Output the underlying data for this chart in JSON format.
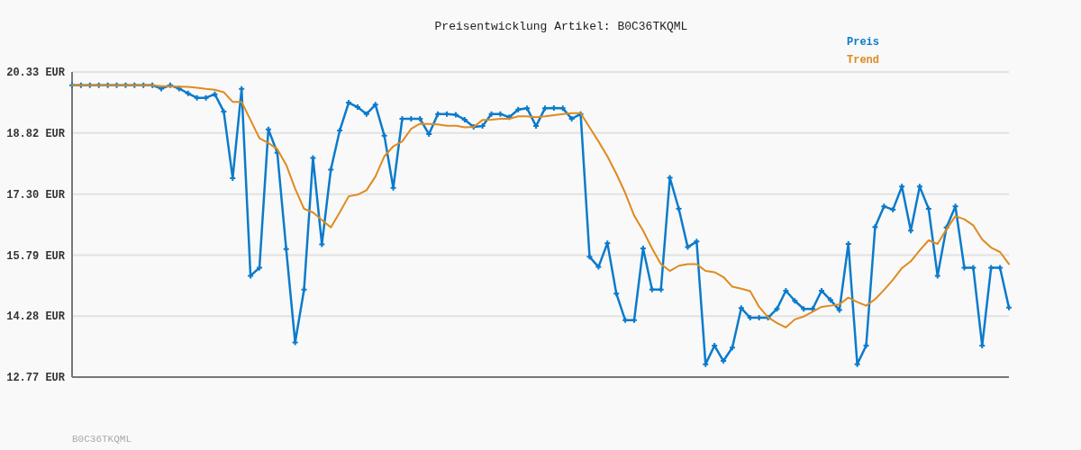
{
  "chart_data": {
    "type": "line",
    "title": "Preisentwicklung Artikel: B0C36TKQML",
    "annotations": [
      "B0C36TKQML"
    ],
    "categories": [
      null,
      null,
      null,
      null,
      null,
      null,
      null,
      null,
      null,
      null,
      null,
      null,
      null,
      null,
      null,
      null,
      null,
      null,
      null,
      null,
      null,
      null,
      null,
      null,
      null,
      null,
      null,
      null,
      null,
      null,
      null,
      null,
      null,
      null,
      null,
      null,
      null,
      null,
      null,
      null,
      null,
      null,
      null,
      null,
      null,
      null,
      null,
      null,
      null,
      null,
      null,
      null,
      null,
      null,
      null,
      null,
      null,
      null,
      null,
      null,
      null,
      null,
      null,
      null,
      null,
      null,
      null,
      null,
      null,
      null,
      null,
      null,
      null,
      null,
      null,
      null,
      null,
      null,
      null,
      null,
      null,
      null,
      null,
      null,
      null,
      null,
      null,
      null,
      null,
      null,
      null,
      null,
      null,
      null,
      null,
      null,
      null,
      null,
      null,
      null,
      null,
      null,
      null,
      null,
      null,
      null
    ],
    "series": [
      {
        "name": "Preis",
        "color": "#0b7bcb",
        "marker": "cross",
        "values": [
          20.0,
          20.0,
          20.0,
          20.0,
          20.0,
          20.0,
          20.0,
          20.0,
          20.0,
          20.0,
          19.92,
          20.0,
          19.92,
          19.8,
          19.69,
          19.69,
          19.78,
          19.35,
          17.7,
          19.91,
          15.28,
          15.48,
          18.91,
          18.33,
          15.94,
          13.63,
          14.94,
          18.2,
          16.06,
          17.91,
          18.88,
          19.57,
          19.46,
          19.29,
          19.52,
          18.75,
          17.46,
          19.17,
          19.17,
          19.17,
          18.79,
          19.29,
          19.29,
          19.27,
          19.15,
          18.97,
          18.99,
          19.29,
          19.29,
          19.21,
          19.4,
          19.43,
          18.99,
          19.43,
          19.44,
          19.43,
          19.17,
          19.29,
          15.75,
          15.5,
          16.09,
          14.84,
          14.18,
          14.18,
          15.96,
          14.94,
          14.94,
          17.71,
          16.94,
          15.99,
          16.13,
          13.09,
          13.55,
          13.17,
          13.5,
          14.48,
          14.24,
          14.24,
          14.24,
          14.46,
          14.91,
          14.66,
          14.46,
          14.46,
          14.91,
          14.68,
          14.43,
          16.07,
          13.09,
          13.55,
          16.49,
          17.0,
          16.92,
          17.49,
          16.4,
          17.49,
          16.94,
          15.28,
          16.48,
          17.0,
          15.48,
          15.48,
          13.55,
          15.48,
          15.48,
          14.49
        ]
      },
      {
        "name": "Trend",
        "color": "#e08a1e",
        "marker": "none",
        "values": [
          20.0,
          20.0,
          20.0,
          20.0,
          20.0,
          20.0,
          20.0,
          20.0,
          20.0,
          20.0,
          19.98,
          19.98,
          19.97,
          19.96,
          19.94,
          19.91,
          19.89,
          19.83,
          19.59,
          19.59,
          19.14,
          18.69,
          18.57,
          18.42,
          18.03,
          17.44,
          16.94,
          16.85,
          16.66,
          16.48,
          16.85,
          17.25,
          17.29,
          17.4,
          17.74,
          18.24,
          18.49,
          18.61,
          18.92,
          19.05,
          19.04,
          19.03,
          19.0,
          19.0,
          18.96,
          18.97,
          19.14,
          19.15,
          19.17,
          19.17,
          19.23,
          19.23,
          19.21,
          19.23,
          19.26,
          19.29,
          19.31,
          19.31,
          18.96,
          18.61,
          18.24,
          17.81,
          17.33,
          16.77,
          16.4,
          15.96,
          15.57,
          15.4,
          15.53,
          15.57,
          15.57,
          15.4,
          15.37,
          15.25,
          15.01,
          14.96,
          14.9,
          14.51,
          14.25,
          14.11,
          14.0,
          14.2,
          14.27,
          14.39,
          14.51,
          14.54,
          14.57,
          14.74,
          14.63,
          14.54,
          14.7,
          14.93,
          15.18,
          15.47,
          15.64,
          15.91,
          16.16,
          16.07,
          16.43,
          16.76,
          16.68,
          16.53,
          16.18,
          15.98,
          15.87,
          15.57
        ]
      }
    ],
    "ylim": [
      12.77,
      20.33
    ],
    "yticks": [
      {
        "value": 12.77,
        "label": "12.77 EUR"
      },
      {
        "value": 14.28,
        "label": "14.28 EUR"
      },
      {
        "value": 15.79,
        "label": "15.79 EUR"
      },
      {
        "value": 17.3,
        "label": "17.30 EUR"
      },
      {
        "value": 18.82,
        "label": "18.82 EUR"
      },
      {
        "value": 20.33,
        "label": "20.33 EUR"
      }
    ],
    "grid": "y",
    "legend": "top right",
    "tick_labels": "y"
  }
}
